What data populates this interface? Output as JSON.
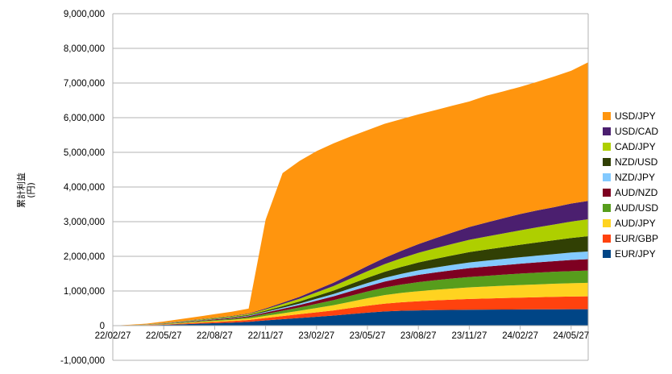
{
  "chart_data": {
    "type": "area",
    "stacked": true,
    "ylabel": "累計利益\n(円)",
    "ylim": [
      -1000000,
      9000000
    ],
    "yticks": [
      -1000000,
      0,
      1000000,
      2000000,
      3000000,
      4000000,
      5000000,
      6000000,
      7000000,
      8000000,
      9000000
    ],
    "ytick_labels": [
      "-1,000,000",
      "0",
      "1,000,000",
      "2,000,000",
      "3,000,000",
      "4,000,000",
      "5,000,000",
      "6,000,000",
      "7,000,000",
      "8,000,000",
      "9,000,000"
    ],
    "xtick_labels": [
      "22/02/27",
      "22/05/27",
      "22/08/27",
      "22/11/27",
      "23/02/27",
      "23/05/27",
      "23/08/27",
      "23/11/27",
      "24/02/27",
      "24/05/27"
    ],
    "grid": "horizontal",
    "legend_position": "right",
    "x_index": [
      0,
      1,
      2,
      3,
      4,
      5,
      6,
      7,
      8,
      9,
      10,
      11,
      12,
      13,
      14,
      15,
      16,
      17,
      18,
      19,
      20,
      21,
      22,
      23,
      24,
      25,
      26,
      27,
      28
    ],
    "series": [
      {
        "name": "EUR/JPY",
        "color": "#004586",
        "values": [
          0,
          4000,
          10000,
          22000,
          38000,
          55000,
          72000,
          88000,
          110000,
          150000,
          185000,
          220000,
          255000,
          290000,
          335000,
          375000,
          410000,
          430000,
          440000,
          450000,
          455000,
          460000,
          462000,
          465000,
          467000,
          470000,
          472000,
          474000,
          475000
        ]
      },
      {
        "name": "EUR/GBP",
        "color": "#ff420e",
        "values": [
          0,
          2000,
          6000,
          12000,
          20000,
          28000,
          36000,
          44000,
          54000,
          72000,
          90000,
          110000,
          130000,
          150000,
          175000,
          200000,
          225000,
          245000,
          265000,
          280000,
          295000,
          310000,
          320000,
          330000,
          340000,
          350000,
          360000,
          365000,
          370000
        ]
      },
      {
        "name": "AUD/JPY",
        "color": "#ffd320",
        "values": [
          0,
          2000,
          5000,
          10000,
          16000,
          22000,
          28000,
          34000,
          42000,
          60000,
          80000,
          100000,
          125000,
          150000,
          180000,
          215000,
          245000,
          270000,
          290000,
          305000,
          320000,
          335000,
          345000,
          355000,
          365000,
          370000,
          378000,
          385000,
          390000
        ]
      },
      {
        "name": "AUD/USD",
        "color": "#579d1c",
        "values": [
          0,
          2000,
          5000,
          10000,
          15000,
          20000,
          25000,
          30000,
          38000,
          55000,
          75000,
          95000,
          120000,
          145000,
          170000,
          195000,
          220000,
          240000,
          260000,
          275000,
          290000,
          300000,
          310000,
          320000,
          330000,
          340000,
          345000,
          350000,
          355000
        ]
      },
      {
        "name": "AUD/NZD",
        "color": "#7e0021",
        "values": [
          0,
          1000,
          3000,
          6000,
          10000,
          14000,
          18000,
          22000,
          28000,
          40000,
          55000,
          70000,
          90000,
          110000,
          130000,
          150000,
          170000,
          190000,
          210000,
          225000,
          240000,
          255000,
          265000,
          275000,
          285000,
          295000,
          305000,
          320000,
          330000
        ]
      },
      {
        "name": "NZD/JPY",
        "color": "#83caff",
        "values": [
          0,
          1000,
          2000,
          4000,
          6000,
          8000,
          10000,
          12000,
          15000,
          22000,
          32000,
          42000,
          55000,
          68000,
          82000,
          95000,
          108000,
          120000,
          132000,
          142000,
          152000,
          162000,
          172000,
          180000,
          188000,
          196000,
          205000,
          215000,
          220000
        ]
      },
      {
        "name": "NZD/USD",
        "color": "#314004",
        "values": [
          0,
          1000,
          2000,
          4000,
          7000,
          10000,
          13000,
          16000,
          20000,
          30000,
          45000,
          60000,
          80000,
          100000,
          125000,
          150000,
          175000,
          200000,
          225000,
          250000,
          275000,
          300000,
          320000,
          340000,
          360000,
          380000,
          400000,
          420000,
          440000
        ]
      },
      {
        "name": "CAD/JPY",
        "color": "#aecf00",
        "values": [
          0,
          1000,
          3000,
          6000,
          10000,
          14000,
          18000,
          22000,
          28000,
          42000,
          60000,
          80000,
          105000,
          130000,
          160000,
          190000,
          220000,
          250000,
          280000,
          305000,
          330000,
          355000,
          375000,
          395000,
          415000,
          435000,
          455000,
          475000,
          490000
        ]
      },
      {
        "name": "USD/CAD",
        "color": "#4b1f6f",
        "values": [
          0,
          1000,
          2000,
          4000,
          6000,
          8000,
          10000,
          12000,
          15000,
          25000,
          40000,
          55000,
          75000,
          95000,
          120000,
          150000,
          180000,
          215000,
          250000,
          290000,
          330000,
          370000,
          405000,
          440000,
          470000,
          490000,
          500000,
          520000,
          530000
        ]
      },
      {
        "name": "USD/JPY",
        "color": "#ff950e",
        "values": [
          0,
          10000,
          20000,
          40000,
          60000,
          80000,
          100000,
          120000,
          140000,
          2560000,
          3740000,
          3920000,
          4000000,
          4020000,
          3980000,
          3920000,
          3870000,
          3800000,
          3745000,
          3695000,
          3660000,
          3620000,
          3660000,
          3660000,
          3670000,
          3710000,
          3770000,
          3830000,
          4000000
        ]
      }
    ]
  }
}
